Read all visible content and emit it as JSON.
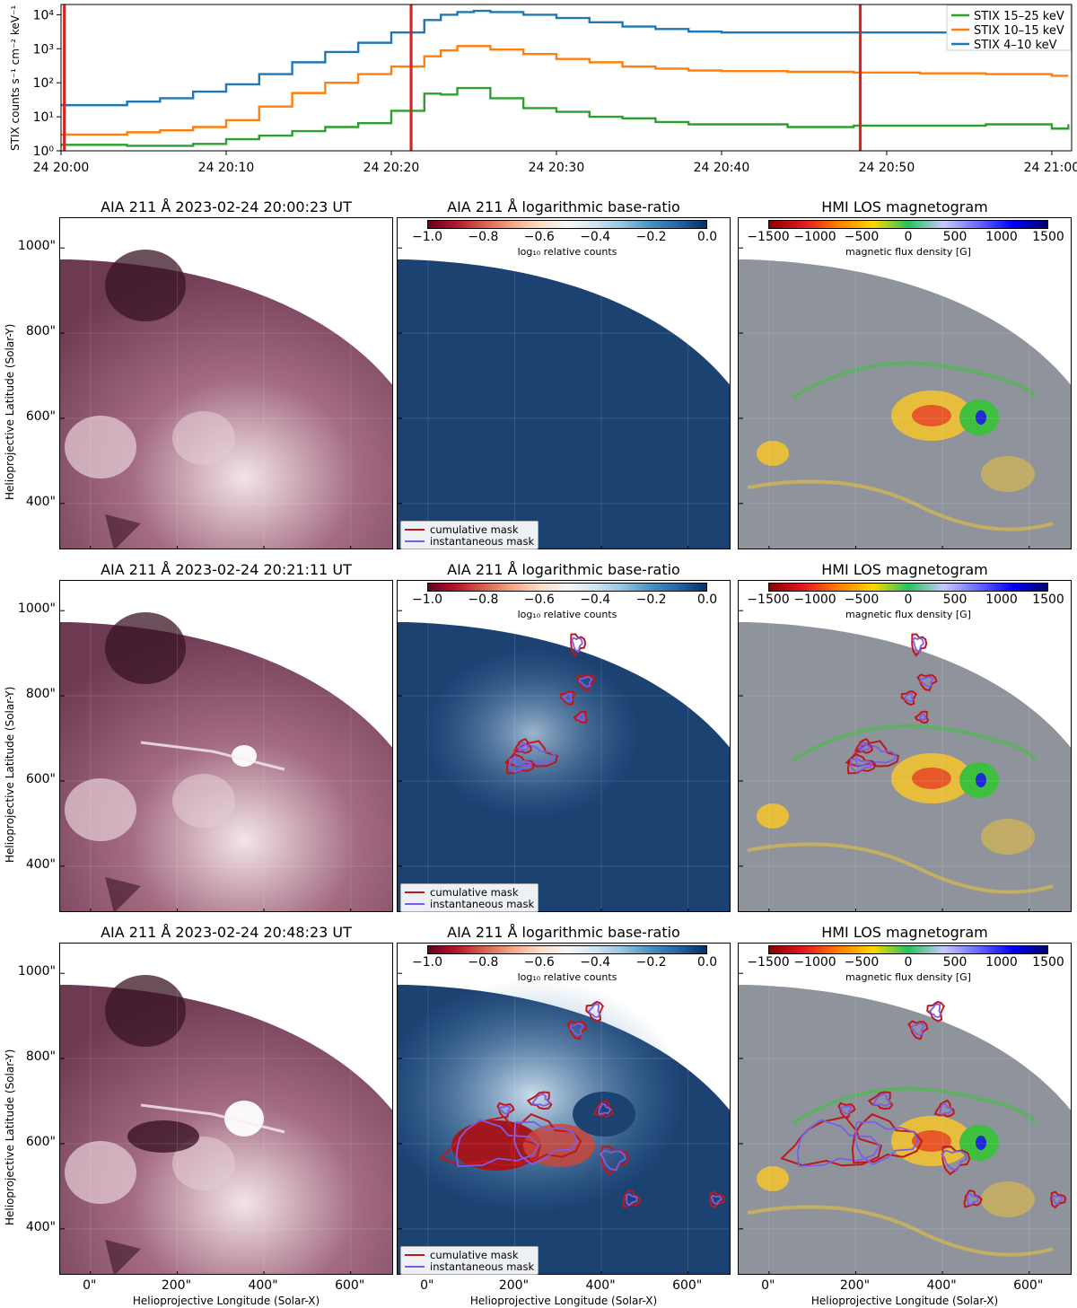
{
  "chart_data": [
    {
      "type": "line",
      "ylabel": "STIX counts s⁻¹ cm⁻² keV⁻¹",
      "yscale": "log",
      "ylim": [
        1,
        20000
      ],
      "yticks": [
        "10⁰",
        "10¹",
        "10²",
        "10³",
        "10⁴"
      ],
      "xlim": [
        "24 20:00",
        "24 21:01"
      ],
      "xticks": [
        "24 20:00",
        "24 20:10",
        "24 20:20",
        "24 20:30",
        "24 20:40",
        "24 20:50",
        "24 21:00"
      ],
      "legend_position": "top-right",
      "series": [
        {
          "name": "STIX 15–25 keV",
          "color": "#2ca02c",
          "x_minutes": [
            0,
            4,
            6,
            8,
            10,
            12,
            14,
            16,
            18,
            20,
            22,
            23,
            24,
            26,
            28,
            30,
            32,
            34,
            36,
            38,
            40,
            44,
            48,
            52,
            56,
            60,
            61
          ],
          "values": [
            1.5,
            1.4,
            1.4,
            1.6,
            2.2,
            2.8,
            3.8,
            5,
            6.5,
            15,
            48,
            45,
            70,
            35,
            18,
            14,
            10,
            9,
            7,
            6,
            6,
            5,
            5.5,
            5.5,
            6,
            4.5,
            6
          ]
        },
        {
          "name": "STIX 10–15 keV",
          "color": "#ff7f0e",
          "x_minutes": [
            0,
            4,
            6,
            8,
            10,
            12,
            14,
            16,
            18,
            20,
            22,
            23,
            24,
            26,
            28,
            30,
            32,
            34,
            36,
            38,
            40,
            44,
            48,
            52,
            56,
            60,
            61
          ],
          "values": [
            3,
            3.5,
            4,
            5,
            8,
            20,
            50,
            100,
            180,
            300,
            600,
            900,
            1200,
            950,
            700,
            500,
            400,
            300,
            260,
            230,
            220,
            210,
            200,
            190,
            180,
            160,
            160
          ]
        },
        {
          "name": "STIX 4–10 keV",
          "color": "#1f77b4",
          "x_minutes": [
            0,
            4,
            6,
            8,
            10,
            12,
            14,
            16,
            18,
            20,
            22,
            23,
            24,
            25,
            26,
            28,
            30,
            32,
            34,
            36,
            38,
            40,
            44,
            48,
            52,
            56,
            60,
            61
          ],
          "values": [
            22,
            28,
            35,
            55,
            90,
            180,
            400,
            800,
            1500,
            3000,
            7000,
            10000,
            12000,
            13000,
            12000,
            10000,
            8000,
            6000,
            4500,
            3800,
            3200,
            3000,
            3000,
            3000,
            3000,
            3100,
            3200,
            3200
          ]
        }
      ],
      "vertical_markers_minutes": [
        0.2,
        21.2,
        48.4
      ],
      "marker_color": "#d62728"
    },
    {
      "type": "heatmap",
      "grid": "3x3",
      "xlabel": "Helioprojective Longitude (Solar-X)",
      "ylabel": "Helioprojective Latitude (Solar-Y)",
      "xticks": [
        "0\"",
        "200\"",
        "400\"",
        "600\""
      ],
      "yticks": [
        "400\"",
        "600\"",
        "800\"",
        "1000\""
      ],
      "xlim": [
        -70,
        700
      ],
      "ylim": [
        290,
        1070
      ]
    }
  ],
  "rows": [
    {
      "aia_title": "AIA 211 Å 2023-02-24 20:00:23 UT",
      "ratio_title": "AIA 211 Å logarithmic base-ratio",
      "hmi_title": "HMI LOS magnetogram",
      "mask_level": 0
    },
    {
      "aia_title": "AIA 211 Å 2023-02-24 20:21:11 UT",
      "ratio_title": "AIA 211 Å logarithmic base-ratio",
      "hmi_title": "HMI LOS magnetogram",
      "mask_level": 1
    },
    {
      "aia_title": "AIA 211 Å 2023-02-24 20:48:23 UT",
      "ratio_title": "AIA 211 Å logarithmic base-ratio",
      "hmi_title": "HMI LOS magnetogram",
      "mask_level": 2
    }
  ],
  "ratio_colorbar": {
    "ticks": [
      "−1.0",
      "−0.8",
      "−0.6",
      "−0.4",
      "−0.2",
      "0.0"
    ],
    "label": "log₁₀ relative counts",
    "range": [
      -1.0,
      0.0
    ]
  },
  "hmi_colorbar": {
    "ticks": [
      "−1500",
      "−1000",
      "−500",
      "0",
      "500",
      "1000",
      "1500"
    ],
    "label": "magnetic flux density [G]",
    "range": [
      -1500,
      1500
    ]
  },
  "mask_legend": {
    "cumulative": "cumulative mask",
    "instantaneous": "instantaneous mask"
  },
  "colors": {
    "cumulative_mask": "#c0171b",
    "instantaneous_mask": "#7b5de8",
    "aia_light": "#f2e4e8",
    "aia_dark": "#3a1424",
    "ratio_bg": "#1c4272"
  }
}
